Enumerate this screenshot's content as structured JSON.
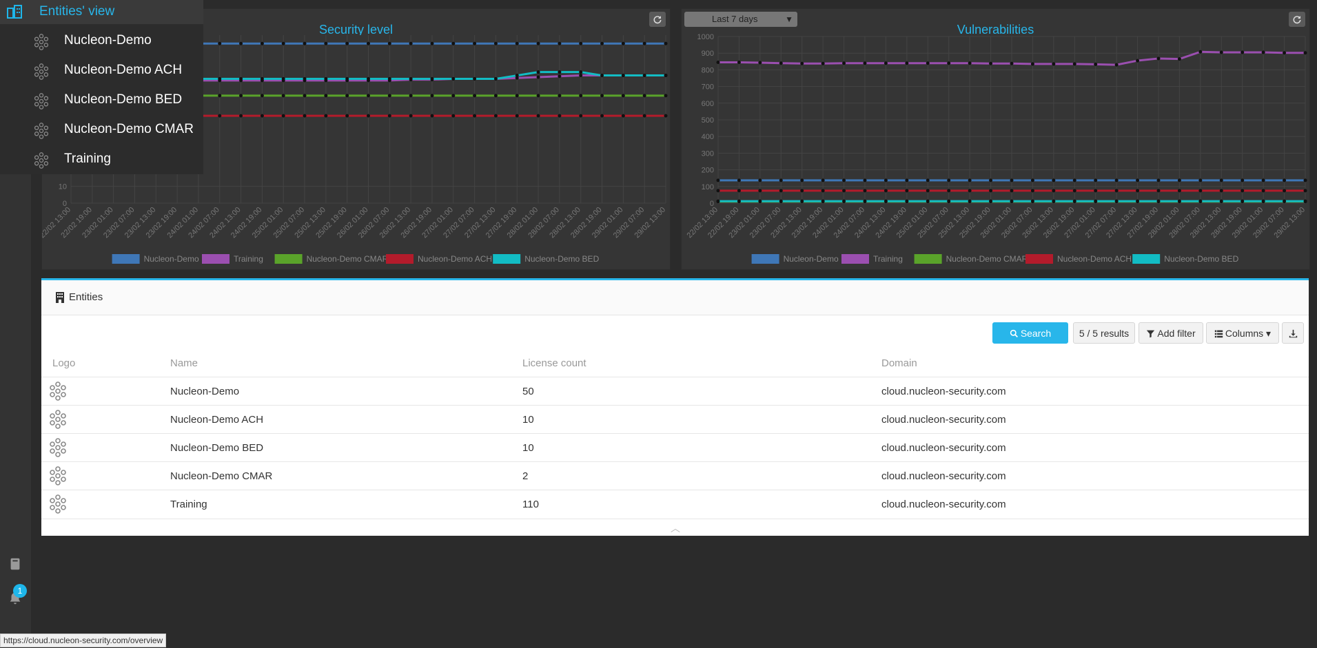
{
  "menu": {
    "header": "Entities' view",
    "items": [
      "Nucleon-Demo",
      "Nucleon-Demo ACH",
      "Nucleon-Demo BED",
      "Nucleon-Demo CMAR",
      "Training"
    ]
  },
  "security_chart": {
    "title": "Security level",
    "y_ticks": [
      "10",
      "0"
    ],
    "x_ticks": [
      "22/02 13:00",
      "22/02 19:00",
      "23/02 01:00",
      "23/02 07:00",
      "23/02 13:00",
      "23/02 19:00",
      "24/02 01:00",
      "24/02 07:00",
      "24/02 13:00",
      "24/02 19:00",
      "25/02 01:00",
      "25/02 07:00",
      "25/02 13:00",
      "25/02 19:00",
      "26/02 01:00",
      "26/02 07:00",
      "26/02 13:00",
      "26/02 19:00",
      "27/02 01:00",
      "27/02 07:00",
      "27/02 13:00",
      "27/02 19:00",
      "28/02 01:00",
      "28/02 07:00",
      "28/02 13:00",
      "28/02 19:00",
      "29/02 01:00",
      "29/02 07:00",
      "29/02 13:00"
    ],
    "legend": [
      "Nucleon-Demo",
      "Training",
      "Nucleon-Demo CMAR",
      "Nucleon-Demo ACH",
      "Nucleon-Demo BED"
    ]
  },
  "vuln_chart": {
    "title": "Vulnerabilities",
    "period": "Last 7 days",
    "y_ticks": [
      "1000",
      "900",
      "800",
      "700",
      "600",
      "500",
      "400",
      "300",
      "200",
      "100",
      "0"
    ],
    "x_ticks": [
      "22/02 13:00",
      "22/02 19:00",
      "23/02 01:00",
      "23/02 07:00",
      "23/02 13:00",
      "23/02 19:00",
      "24/02 01:00",
      "24/02 07:00",
      "24/02 13:00",
      "24/02 19:00",
      "25/02 01:00",
      "25/02 07:00",
      "25/02 13:00",
      "25/02 19:00",
      "26/02 01:00",
      "26/02 07:00",
      "26/02 13:00",
      "26/02 19:00",
      "27/02 01:00",
      "27/02 07:00",
      "27/02 13:00",
      "27/02 19:00",
      "28/02 01:00",
      "28/02 07:00",
      "28/02 13:00",
      "28/02 19:00",
      "29/02 01:00",
      "29/02 07:00",
      "29/02 13:00"
    ],
    "legend": [
      "Nucleon-Demo",
      "Training",
      "Nucleon-Demo CMAR",
      "Nucleon-Demo ACH",
      "Nucleon-Demo BED"
    ]
  },
  "colors": {
    "Nucleon-Demo": "#3f77b7",
    "Training": "#9b4fb0",
    "Nucleon-Demo CMAR": "#5aa32a",
    "Nucleon-Demo ACH": "#b31b2b",
    "Nucleon-Demo BED": "#12bcc4",
    "accent": "#28b6ea"
  },
  "chart_data": [
    {
      "type": "line",
      "title": "Security level",
      "x": [
        "22/02 13:00",
        "22/02 19:00",
        "23/02 01:00",
        "23/02 07:00",
        "23/02 13:00",
        "23/02 19:00",
        "24/02 01:00",
        "24/02 07:00",
        "24/02 13:00",
        "24/02 19:00",
        "25/02 01:00",
        "25/02 07:00",
        "25/02 13:00",
        "25/02 19:00",
        "26/02 01:00",
        "26/02 07:00",
        "26/02 13:00",
        "26/02 19:00",
        "27/02 01:00",
        "27/02 07:00",
        "27/02 13:00",
        "27/02 19:00",
        "28/02 01:00",
        "28/02 07:00",
        "28/02 13:00",
        "28/02 19:00",
        "29/02 01:00",
        "29/02 07:00",
        "29/02 13:00"
      ],
      "series": [
        {
          "name": "Nucleon-Demo",
          "values": [
            95,
            95,
            95,
            95,
            95,
            95,
            95,
            95,
            95,
            95,
            95,
            95,
            95,
            95,
            95,
            95,
            95,
            95,
            95,
            95,
            95,
            95,
            95,
            95,
            95,
            95,
            95,
            95,
            95
          ]
        },
        {
          "name": "Training",
          "values": [
            73,
            73,
            73,
            73,
            73,
            73,
            73,
            73,
            73,
            73,
            73,
            73,
            73,
            73,
            73,
            73,
            73.5,
            73.5,
            74,
            74,
            74,
            74.5,
            75,
            75.5,
            76,
            76,
            76,
            76,
            76
          ]
        },
        {
          "name": "Nucleon-Demo CMAR",
          "values": [
            64,
            64,
            64,
            64,
            64,
            64,
            64,
            64,
            64,
            64,
            64,
            64,
            64,
            64,
            64,
            64,
            64,
            64,
            64,
            64,
            64,
            64,
            64,
            64,
            64,
            64,
            64,
            64,
            64
          ]
        },
        {
          "name": "Nucleon-Demo ACH",
          "values": [
            52,
            52,
            52,
            52,
            52,
            52,
            52,
            52,
            52,
            52,
            52,
            52,
            52,
            52,
            52,
            52,
            52,
            52,
            52,
            52,
            52,
            52,
            52,
            52,
            52,
            52,
            52,
            52,
            52
          ]
        },
        {
          "name": "Nucleon-Demo BED",
          "values": [
            74,
            74,
            74,
            74,
            74,
            74,
            74,
            74,
            74,
            74,
            74,
            74,
            74,
            74,
            74,
            74,
            74,
            74,
            74,
            74,
            74,
            76,
            78,
            78,
            78,
            76,
            76,
            76,
            76
          ]
        }
      ]
    },
    {
      "type": "line",
      "title": "Vulnerabilities",
      "ylim": [
        0,
        1000
      ],
      "x": [
        "22/02 13:00",
        "22/02 19:00",
        "23/02 01:00",
        "23/02 07:00",
        "23/02 13:00",
        "23/02 19:00",
        "24/02 01:00",
        "24/02 07:00",
        "24/02 13:00",
        "24/02 19:00",
        "25/02 01:00",
        "25/02 07:00",
        "25/02 13:00",
        "25/02 19:00",
        "26/02 01:00",
        "26/02 07:00",
        "26/02 13:00",
        "26/02 19:00",
        "27/02 01:00",
        "27/02 07:00",
        "27/02 13:00",
        "27/02 19:00",
        "28/02 01:00",
        "28/02 07:00",
        "28/02 13:00",
        "28/02 19:00",
        "29/02 01:00",
        "29/02 07:00",
        "29/02 13:00"
      ],
      "series": [
        {
          "name": "Nucleon-Demo",
          "values": [
            137,
            137,
            137,
            137,
            137,
            137,
            137,
            137,
            137,
            137,
            137,
            137,
            137,
            137,
            137,
            137,
            137,
            137,
            137,
            137,
            137,
            137,
            137,
            137,
            137,
            137,
            137,
            137,
            137
          ]
        },
        {
          "name": "Training",
          "values": [
            845,
            845,
            843,
            840,
            838,
            838,
            840,
            840,
            840,
            840,
            840,
            840,
            840,
            838,
            838,
            835,
            835,
            835,
            833,
            830,
            855,
            868,
            865,
            908,
            905,
            905,
            905,
            902,
            902
          ]
        },
        {
          "name": "Nucleon-Demo CMAR",
          "values": [
            10,
            10,
            10,
            10,
            10,
            10,
            10,
            10,
            10,
            10,
            10,
            10,
            10,
            10,
            10,
            10,
            10,
            10,
            10,
            10,
            10,
            10,
            10,
            10,
            10,
            10,
            10,
            10,
            10
          ]
        },
        {
          "name": "Nucleon-Demo ACH",
          "values": [
            75,
            75,
            75,
            75,
            75,
            75,
            75,
            75,
            75,
            75,
            75,
            75,
            75,
            75,
            75,
            75,
            75,
            75,
            75,
            75,
            75,
            75,
            75,
            75,
            75,
            75,
            75,
            75,
            75
          ]
        },
        {
          "name": "Nucleon-Demo BED",
          "values": [
            12,
            12,
            12,
            12,
            12,
            12,
            12,
            12,
            12,
            12,
            12,
            12,
            12,
            12,
            12,
            12,
            12,
            12,
            12,
            12,
            12,
            12,
            12,
            12,
            12,
            12,
            12,
            12,
            12
          ]
        }
      ]
    }
  ],
  "entities": {
    "title": "Entities",
    "search_label": "Search",
    "results_label": "5 / 5 results",
    "filter_label": "Add filter",
    "columns_label": "Columns",
    "headers": [
      "Logo",
      "Name",
      "License count",
      "Domain"
    ],
    "rows": [
      {
        "name": "Nucleon-Demo",
        "license": "50",
        "domain": "cloud.nucleon-security.com"
      },
      {
        "name": "Nucleon-Demo ACH",
        "license": "10",
        "domain": "cloud.nucleon-security.com"
      },
      {
        "name": "Nucleon-Demo BED",
        "license": "10",
        "domain": "cloud.nucleon-security.com"
      },
      {
        "name": "Nucleon-Demo CMAR",
        "license": "2",
        "domain": "cloud.nucleon-security.com"
      },
      {
        "name": "Training",
        "license": "110",
        "domain": "cloud.nucleon-security.com"
      }
    ]
  },
  "notifications": {
    "count": "1"
  },
  "status_url": "https://cloud.nucleon-security.com/overview"
}
